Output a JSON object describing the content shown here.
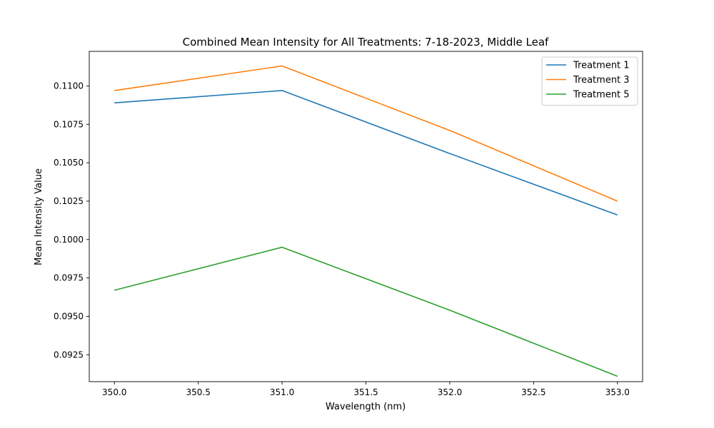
{
  "chart_data": {
    "type": "line",
    "title": "Combined Mean Intensity for All Treatments: 7-18-2023, Middle Leaf",
    "xlabel": "Wavelength (nm)",
    "ylabel": "Mean Intensity Value",
    "x": [
      350.0,
      351.0,
      352.0,
      353.0
    ],
    "xlim": [
      349.85,
      353.15
    ],
    "ylim": [
      0.09075,
      0.11225
    ],
    "xticks": [
      "350.0",
      "350.5",
      "351.0",
      "351.5",
      "352.0",
      "352.5",
      "353.0"
    ],
    "yticks": [
      "0.0925",
      "0.0950",
      "0.0975",
      "0.1000",
      "0.1025",
      "0.1050",
      "0.1075",
      "0.1100"
    ],
    "grid": false,
    "legend_position": "top-right",
    "series": [
      {
        "name": "Treatment 1",
        "color": "#1f77b4",
        "values": [
          0.1089,
          0.1097,
          0.1056,
          0.1016
        ]
      },
      {
        "name": "Treatment 3",
        "color": "#ff7f0e",
        "values": [
          0.1097,
          0.1113,
          0.1071,
          0.1025
        ]
      },
      {
        "name": "Treatment 5",
        "color": "#2ca02c",
        "values": [
          0.0967,
          0.0995,
          0.0954,
          0.0911
        ]
      }
    ]
  }
}
